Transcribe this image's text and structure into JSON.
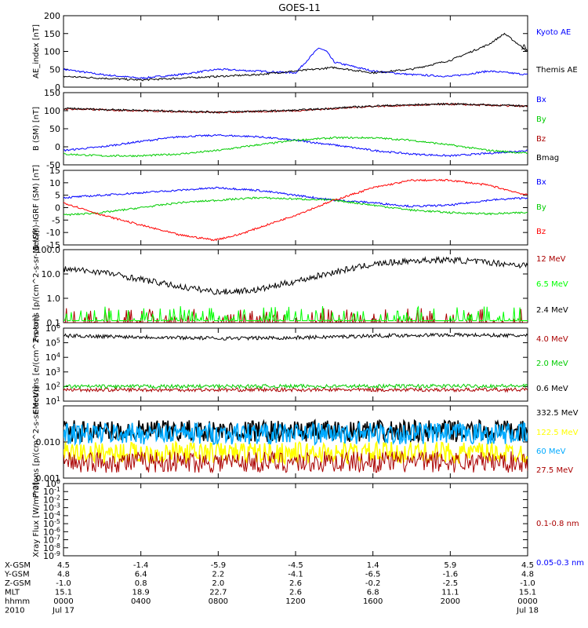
{
  "title": "GOES-11",
  "colors": {
    "blue": "#0000ff",
    "black": "#000000",
    "green": "#00cc00",
    "red": "#ff0000",
    "darkred": "#aa0000",
    "cyan": "#00aaff",
    "yellow": "#ffff00",
    "bright_green": "#00ff00"
  },
  "x_axis": {
    "ticks_hhmm": [
      "0000",
      "0400",
      "0800",
      "1200",
      "1600",
      "2000",
      "0000"
    ],
    "row_labels": [
      "X-GSM",
      "Y-GSM",
      "Z-GSM",
      "MLT",
      "hhmm",
      "2010"
    ],
    "rows": {
      "X-GSM": [
        "4.5",
        "-1.4",
        "-5.9",
        "-4.5",
        "1.4",
        "5.9",
        "4.5"
      ],
      "Y-GSM": [
        "4.8",
        "6.4",
        "2.2",
        "-4.1",
        "-6.5",
        "-1.6",
        "4.8"
      ],
      "Z-GSM": [
        "-1.0",
        "0.8",
        "2.0",
        "2.6",
        "-0.2",
        "-2.5",
        "-1.0"
      ],
      "MLT": [
        "15.1",
        "18.9",
        "22.7",
        "2.6",
        "6.8",
        "11.1",
        "15.1"
      ],
      "hhmm": [
        "0000",
        "0400",
        "0800",
        "1200",
        "1600",
        "2000",
        "0000"
      ],
      "2010": [
        "Jul 17",
        "",
        "",
        "",
        "",
        "",
        "Jul 18"
      ]
    }
  },
  "chart_data": [
    {
      "type": "line",
      "ylabel": "AE_index [nT]",
      "ylim": [
        0,
        200
      ],
      "ytick_labels": [
        "0",
        "50",
        "100",
        "150",
        "200"
      ],
      "scale": "linear",
      "series": [
        {
          "name": "Kyoto AE",
          "color": "#0000ff",
          "x": [
            0,
            2,
            4,
            6,
            8,
            10,
            12,
            13.2,
            13.6,
            14,
            16,
            18,
            20,
            22,
            24
          ],
          "y": [
            50,
            35,
            25,
            35,
            50,
            45,
            40,
            110,
            100,
            70,
            45,
            35,
            30,
            45,
            35
          ]
        },
        {
          "name": "Themis AE",
          "color": "#000000",
          "x": [
            0,
            2,
            4,
            6,
            8,
            10,
            12,
            14,
            16,
            18,
            20,
            22,
            22.8,
            24
          ],
          "y": [
            30,
            25,
            20,
            25,
            30,
            35,
            45,
            55,
            40,
            50,
            75,
            120,
            150,
            100
          ]
        }
      ],
      "annotation": "A"
    },
    {
      "type": "line",
      "ylabel": "B (SM) [nT]",
      "ylim": [
        -50,
        150
      ],
      "ytick_labels": [
        "-50",
        "0",
        "50",
        "100",
        "150"
      ],
      "scale": "linear",
      "series": [
        {
          "name": "Bx",
          "color": "#0000ff",
          "x": [
            0,
            2,
            4,
            6,
            8,
            10,
            12,
            14,
            16,
            18,
            20,
            22,
            24
          ],
          "y": [
            -10,
            0,
            15,
            28,
            32,
            28,
            18,
            5,
            -10,
            -20,
            -25,
            -18,
            -10
          ]
        },
        {
          "name": "By",
          "color": "#00cc00",
          "x": [
            0,
            2,
            4,
            6,
            8,
            10,
            12,
            14,
            16,
            18,
            20,
            22,
            24
          ],
          "y": [
            -20,
            -25,
            -25,
            -20,
            -10,
            5,
            18,
            25,
            25,
            18,
            5,
            -10,
            -18
          ]
        },
        {
          "name": "Bz",
          "color": "#aa0000",
          "x": [
            0,
            4,
            8,
            12,
            16,
            20,
            24
          ],
          "y": [
            105,
            100,
            95,
            100,
            112,
            118,
            112
          ]
        },
        {
          "name": "Bmag",
          "color": "#000000",
          "x": [
            0,
            4,
            8,
            12,
            16,
            20,
            24
          ],
          "y": [
            106,
            101,
            96,
            101,
            113,
            119,
            113
          ]
        }
      ]
    },
    {
      "type": "line",
      "ylabel": "B (SM)-IGRF (SM) [nT]",
      "ylim": [
        -15,
        15
      ],
      "ytick_labels": [
        "-15",
        "-10",
        "-5",
        "0",
        "5",
        "10",
        "15"
      ],
      "scale": "linear",
      "series": [
        {
          "name": "Bx",
          "color": "#0000ff",
          "x": [
            0,
            2,
            4,
            6,
            8,
            10,
            12,
            14,
            16,
            18,
            20,
            22,
            24
          ],
          "y": [
            4,
            5,
            6,
            7,
            8,
            7,
            5,
            3,
            2,
            0.5,
            1,
            3,
            4
          ]
        },
        {
          "name": "By",
          "color": "#00cc00",
          "x": [
            0,
            2,
            4,
            6,
            8,
            10,
            12,
            14,
            16,
            18,
            20,
            22,
            24
          ],
          "y": [
            -3,
            -2,
            0,
            2,
            3,
            4,
            3.5,
            3,
            1,
            -1,
            -2,
            -2.5,
            -2
          ]
        },
        {
          "name": "Bz",
          "color": "#ff0000",
          "x": [
            0,
            2,
            4,
            6,
            7.8,
            9,
            10.5,
            12,
            14,
            16,
            18,
            20,
            22,
            24
          ],
          "y": [
            2,
            -3,
            -7,
            -11,
            -13,
            -11,
            -7,
            -3,
            3,
            8,
            11,
            11,
            9,
            5
          ]
        }
      ]
    },
    {
      "type": "line",
      "ylabel": "Protons [p/(cm^2-s-sr-MeV)]",
      "ylim": [
        0.1,
        100
      ],
      "ytick_labels": [
        "0.1",
        "1.0",
        "10.0",
        "100.0"
      ],
      "scale": "log",
      "series": [
        {
          "name": "12 MeV",
          "color": "#aa0000",
          "spiky": true,
          "x": [
            0,
            24
          ],
          "y": [
            0.1,
            0.1
          ]
        },
        {
          "name": "6.5 MeV",
          "color": "#00ff00",
          "spiky": true,
          "x": [
            0,
            24
          ],
          "y": [
            0.12,
            0.12
          ]
        },
        {
          "name": "2.4 MeV",
          "color": "#000000",
          "x": [
            0,
            2,
            4,
            6,
            8,
            10,
            12,
            14,
            16,
            18,
            20,
            22,
            24
          ],
          "y": [
            16,
            12,
            6,
            3,
            1.8,
            2.2,
            5,
            12,
            25,
            35,
            38,
            30,
            22
          ]
        }
      ]
    },
    {
      "type": "line",
      "ylabel": "Electrons [e/(cm^2-s-sr)]",
      "ylim": [
        10,
        1000000
      ],
      "ytick_labels": [
        "10^1",
        "10^2",
        "10^3",
        "10^4",
        "10^5",
        "10^6"
      ],
      "scale": "log",
      "series": [
        {
          "name": "4.0 MeV",
          "color": "#aa0000",
          "x": [
            0,
            24
          ],
          "y": [
            60,
            60
          ]
        },
        {
          "name": "2.0 MeV",
          "color": "#00cc00",
          "x": [
            0,
            24
          ],
          "y": [
            100,
            110
          ]
        },
        {
          "name": "0.6 MeV",
          "color": "#000000",
          "x": [
            0,
            4,
            8,
            12,
            16,
            20,
            24
          ],
          "y": [
            300000,
            250000,
            200000,
            220000,
            300000,
            350000,
            300000
          ]
        }
      ]
    },
    {
      "type": "line",
      "ylabel": "Protons [p/(cm^2-s-sr-MeV)]",
      "ylim": [
        0.001,
        0.1
      ],
      "ytick_labels": [
        "0.001",
        "0.010"
      ],
      "scale": "log",
      "series": [
        {
          "name": "332.5 MeV",
          "color": "#000000",
          "x": [
            0,
            24
          ],
          "y": [
            0.02,
            0.02
          ]
        },
        {
          "name": "122.5 MeV",
          "color": "#ffff00",
          "x": [
            0,
            24
          ],
          "y": [
            0.005,
            0.005
          ]
        },
        {
          "name": "60 MeV",
          "color": "#00aaff",
          "x": [
            0,
            24
          ],
          "y": [
            0.017,
            0.017
          ]
        },
        {
          "name": "27.5 MeV",
          "color": "#aa0000",
          "x": [
            0,
            24
          ],
          "y": [
            0.0028,
            0.0028
          ]
        }
      ]
    },
    {
      "type": "line",
      "ylabel": "Xray Flux [W/m^2]",
      "ylim": [
        1e-09,
        1
      ],
      "ytick_labels": [
        "10^-9",
        "10^-8",
        "10^-7",
        "10^-6",
        "10^-5",
        "10^-4",
        "10^-3",
        "10^-2",
        "10^-1",
        "10^0"
      ],
      "scale": "log",
      "series": [
        {
          "name": "0.1-0.8 nm",
          "color": "#aa0000",
          "x": [],
          "y": []
        },
        {
          "name": "0.05-0.3 nm",
          "color": "#0000ff",
          "x": [],
          "y": []
        }
      ]
    }
  ]
}
